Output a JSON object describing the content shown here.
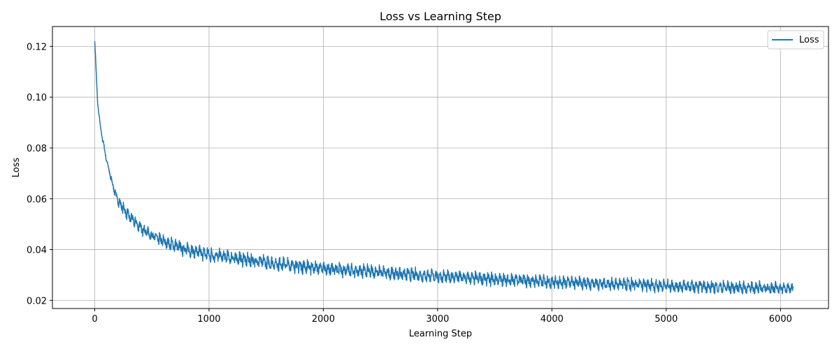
{
  "chart_data": {
    "type": "line",
    "title": "Loss vs Learning Step",
    "xlabel": "Learning Step",
    "ylabel": "Loss",
    "xlim": [
      -370,
      6420
    ],
    "ylim": [
      0.0168,
      0.1278
    ],
    "xticks": [
      0,
      1000,
      2000,
      3000,
      4000,
      5000,
      6000
    ],
    "yticks": [
      0.02,
      0.04,
      0.06,
      0.08,
      0.1,
      0.12
    ],
    "xtick_labels": [
      "0",
      "1000",
      "2000",
      "3000",
      "4000",
      "5000",
      "6000"
    ],
    "ytick_labels": [
      "0.02",
      "0.04",
      "0.06",
      "0.08",
      "0.10",
      "0.12"
    ],
    "grid": true,
    "legend_position": "top-right",
    "series": [
      {
        "name": "Loss",
        "color": "#1f77b4",
        "x_range": [
          0,
          6110
        ],
        "trend": [
          [
            0,
            0.1225
          ],
          [
            25,
            0.098
          ],
          [
            50,
            0.088
          ],
          [
            100,
            0.076
          ],
          [
            150,
            0.0665
          ],
          [
            200,
            0.0595
          ],
          [
            300,
            0.053
          ],
          [
            400,
            0.0488
          ],
          [
            500,
            0.0455
          ],
          [
            600,
            0.0432
          ],
          [
            800,
            0.04
          ],
          [
            1000,
            0.038
          ],
          [
            1500,
            0.035
          ],
          [
            2000,
            0.0325
          ],
          [
            2500,
            0.031
          ],
          [
            3000,
            0.0295
          ],
          [
            3500,
            0.0283
          ],
          [
            4000,
            0.0273
          ],
          [
            4500,
            0.0265
          ],
          [
            5000,
            0.0258
          ],
          [
            5500,
            0.0252
          ],
          [
            6110,
            0.0247
          ]
        ],
        "noise_amplitude": [
          [
            0,
            0.0005
          ],
          [
            300,
            0.003
          ],
          [
            1000,
            0.0034
          ],
          [
            3000,
            0.0032
          ],
          [
            6110,
            0.003
          ]
        ],
        "oscillation_period_steps": 35
      }
    ]
  }
}
